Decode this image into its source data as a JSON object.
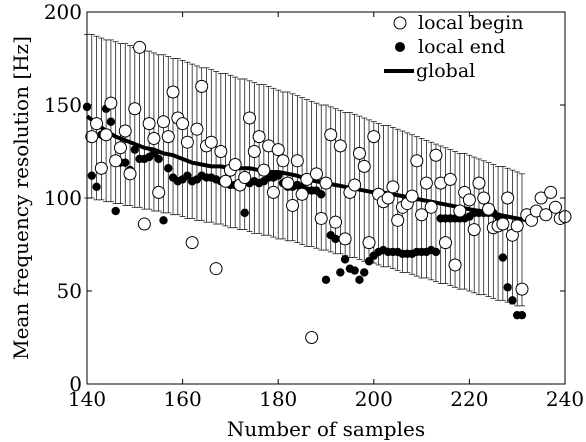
{
  "chart_data": {
    "type": "scatter",
    "title": "",
    "xlabel": "Number of samples",
    "ylabel": "Mean frequency resolution [Hz]",
    "xlim": [
      140,
      240
    ],
    "ylim": [
      0,
      200
    ],
    "xticks": [
      "140",
      "160",
      "180",
      "200",
      "220",
      "240"
    ],
    "yticks": [
      "0",
      "50",
      "100",
      "150",
      "200"
    ],
    "grid": false,
    "legend_position": "top-right",
    "series": [
      {
        "name": "local begin",
        "marker": "open-circle",
        "x": [
          141,
          142,
          143,
          144,
          145,
          146,
          147,
          148,
          149,
          150,
          151,
          152,
          153,
          154,
          155,
          156,
          157,
          158,
          159,
          160,
          161,
          162,
          163,
          164,
          165,
          166,
          167,
          168,
          169,
          170,
          171,
          172,
          173,
          174,
          175,
          176,
          177,
          178,
          179,
          180,
          181,
          182,
          183,
          184,
          185,
          186,
          187,
          188,
          189,
          190,
          191,
          192,
          193,
          194,
          195,
          196,
          197,
          198,
          199,
          200,
          201,
          202,
          203,
          204,
          205,
          206,
          207,
          208,
          209,
          210,
          211,
          212,
          213,
          214,
          215,
          216,
          217,
          218,
          219,
          220,
          221,
          222,
          223,
          224,
          225,
          226,
          227,
          228,
          229,
          230,
          231,
          232,
          233,
          234,
          235,
          236,
          237,
          238,
          239,
          240
        ],
        "y": [
          133,
          140,
          116,
          134,
          151,
          120,
          127,
          136,
          113,
          148,
          181,
          86,
          140,
          132,
          103,
          141,
          133,
          157,
          143,
          140,
          130,
          76,
          137,
          160,
          128,
          130,
          62,
          125,
          109,
          115,
          118,
          107,
          111,
          143,
          125,
          133,
          115,
          128,
          103,
          126,
          120,
          108,
          96,
          120,
          102,
          110,
          25,
          113,
          89,
          108,
          134,
          87,
          128,
          78,
          103,
          107,
          124,
          117,
          76,
          133,
          102,
          98,
          100,
          106,
          88,
          95,
          97,
          101,
          120,
          91,
          108,
          95,
          123,
          108,
          76,
          110,
          64,
          93,
          103,
          99,
          83,
          108,
          100,
          94,
          84,
          85,
          86,
          100,
          80,
          85,
          51,
          91,
          88,
          93,
          100,
          91,
          103,
          95,
          89,
          90
        ]
      },
      {
        "name": "local end",
        "marker": "filled-circle",
        "x": [
          140,
          141,
          142,
          143,
          144,
          145,
          146,
          147,
          148,
          149,
          150,
          151,
          152,
          153,
          154,
          155,
          156,
          157,
          158,
          159,
          160,
          161,
          162,
          163,
          164,
          165,
          166,
          167,
          168,
          169,
          170,
          171,
          172,
          173,
          174,
          175,
          176,
          177,
          178,
          179,
          180,
          181,
          182,
          183,
          184,
          185,
          186,
          187,
          188,
          189,
          190,
          191,
          192,
          193,
          194,
          195,
          196,
          197,
          198,
          199,
          200,
          201,
          202,
          203,
          204,
          205,
          206,
          207,
          208,
          209,
          210,
          211,
          212,
          213,
          214,
          215,
          216,
          217,
          218,
          219,
          220,
          221,
          222,
          223,
          224,
          225,
          226,
          227,
          228,
          229,
          230,
          231
        ],
        "y": [
          149,
          112,
          106,
          134,
          148,
          141,
          93,
          119,
          119,
          115,
          126,
          121,
          121,
          122,
          124,
          121,
          88,
          116,
          111,
          109,
          110,
          112,
          109,
          110,
          112,
          111,
          111,
          110,
          109,
          108,
          107,
          107,
          107,
          92,
          108,
          109,
          108,
          109,
          111,
          111,
          112,
          108,
          106,
          106,
          107,
          106,
          104,
          104,
          104,
          102,
          56,
          80,
          78,
          60,
          67,
          62,
          61,
          56,
          60,
          66,
          69,
          71,
          72,
          71,
          71,
          71,
          70,
          70,
          70,
          71,
          71,
          71,
          72,
          71,
          89,
          89,
          89,
          89,
          89,
          89,
          90,
          92,
          92,
          92,
          92,
          92,
          90,
          68,
          52,
          45,
          37,
          37
        ]
      },
      {
        "name": "global",
        "marker": "line",
        "x": [
          140,
          142,
          144,
          146,
          148,
          150,
          152,
          154,
          156,
          158,
          160,
          162,
          164,
          166,
          168,
          170,
          172,
          174,
          176,
          178,
          180,
          182,
          184,
          186,
          188,
          190,
          192,
          194,
          196,
          198,
          200,
          202,
          204,
          206,
          208,
          210,
          212,
          214,
          216,
          218,
          220,
          222,
          224,
          226,
          228,
          230,
          232
        ],
        "y": [
          144,
          140,
          136,
          133,
          131,
          129,
          127,
          126,
          124,
          123,
          121,
          119,
          118,
          117,
          117,
          116,
          116,
          116,
          115,
          114,
          114,
          113,
          112,
          110,
          109,
          108,
          107,
          106,
          105,
          104,
          103,
          103,
          102,
          101,
          100,
          99,
          98,
          97,
          96,
          95,
          94,
          93,
          92,
          91,
          90,
          89,
          88
        ]
      }
    ],
    "error_bars": {
      "x": [
        140,
        141,
        142,
        143,
        144,
        145,
        146,
        147,
        148,
        149,
        150,
        151,
        152,
        153,
        154,
        155,
        156,
        157,
        158,
        159,
        160,
        161,
        162,
        163,
        164,
        165,
        166,
        167,
        168,
        169,
        170,
        171,
        172,
        173,
        174,
        175,
        176,
        177,
        178,
        179,
        180,
        181,
        182,
        183,
        184,
        185,
        186,
        187,
        188,
        189,
        190,
        191,
        192,
        193,
        194,
        195,
        196,
        197,
        198,
        199,
        200,
        201,
        202,
        203,
        204,
        205,
        206,
        207,
        208,
        209,
        210,
        211,
        212,
        213,
        214,
        215,
        216,
        217,
        218,
        219,
        220,
        221,
        222,
        223,
        224,
        225,
        226,
        227,
        228,
        229,
        230,
        231
      ],
      "upper": [
        188,
        188,
        187,
        186,
        185,
        185,
        184,
        183,
        183,
        182,
        181,
        180,
        179,
        179,
        178,
        177,
        177,
        176,
        175,
        175,
        174,
        173,
        172,
        171,
        170,
        170,
        169,
        168,
        167,
        167,
        166,
        165,
        164,
        164,
        163,
        162,
        161,
        161,
        160,
        159,
        158,
        157,
        157,
        156,
        155,
        154,
        153,
        152,
        151,
        150,
        150,
        149,
        148,
        147,
        146,
        146,
        145,
        144,
        143,
        142,
        141,
        140,
        139,
        139,
        138,
        137,
        136,
        135,
        134,
        133,
        132,
        131,
        130,
        129,
        128,
        127,
        126,
        125,
        124,
        124,
        123,
        122,
        121,
        120,
        119,
        118,
        117,
        117,
        116,
        115,
        114,
        113
      ],
      "lower": [
        100,
        100,
        99,
        99,
        98,
        98,
        97,
        97,
        96,
        96,
        95,
        95,
        94,
        94,
        93,
        93,
        92,
        92,
        91,
        91,
        90,
        89,
        89,
        88,
        88,
        87,
        87,
        86,
        86,
        85,
        84,
        84,
        83,
        83,
        82,
        81,
        81,
        80,
        80,
        79,
        78,
        78,
        77,
        77,
        76,
        75,
        74,
        74,
        73,
        72,
        72,
        71,
        70,
        70,
        69,
        68,
        68,
        67,
        66,
        66,
        65,
        64,
        63,
        63,
        62,
        61,
        60,
        60,
        59,
        58,
        57,
        57,
        56,
        55,
        54,
        54,
        53,
        52,
        51,
        51,
        50,
        49,
        48,
        48,
        47,
        46,
        45,
        45,
        44,
        43,
        42,
        42
      ]
    }
  }
}
